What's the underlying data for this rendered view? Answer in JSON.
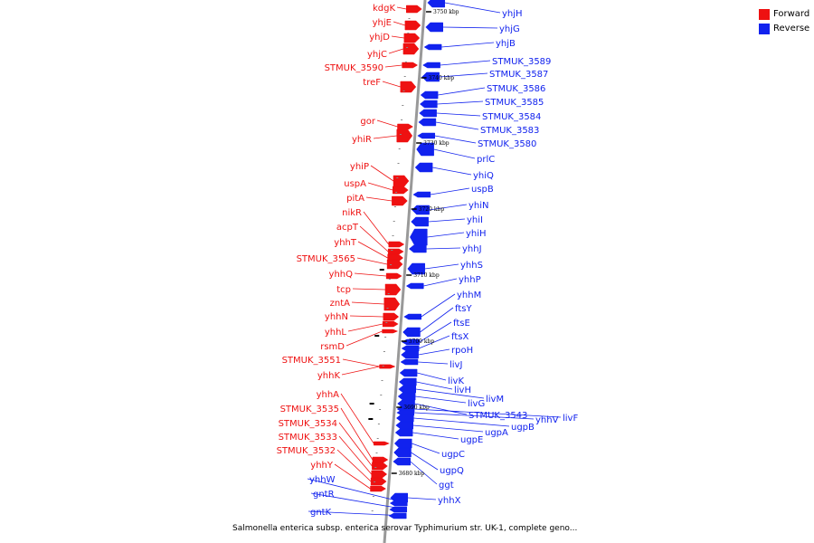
{
  "legend": {
    "forward": {
      "label": "Forward",
      "color": "#ee1111"
    },
    "reverse": {
      "label": "Reverse",
      "color": "#1122ee"
    }
  },
  "caption": "Salmonella enterica subsp. enterica serovar Typhimurium str. UK-1, complete geno...",
  "colors": {
    "forward": "#ee1111",
    "reverse": "#1122ee",
    "axis": "#999999"
  },
  "forward_genes": [
    "kdgK",
    "yhjE",
    "yhjD",
    "yhjC",
    "STMUK_3590",
    "treF",
    "gor",
    "yhiR",
    "yhiP",
    "uspA",
    "pitA",
    "nikR",
    "acpT",
    "yhhT",
    "STMUK_3565",
    "yhhQ",
    "tcp",
    "zntA",
    "yhhN",
    "yhhL",
    "rsmD",
    "STMUK_3551",
    "yhhK",
    "yhhA",
    "STMUK_3535",
    "STMUK_3534",
    "STMUK_3533",
    "STMUK_3532",
    "yhhY"
  ],
  "reverse_genes": [
    "yhjH",
    "yhjG",
    "yhjB",
    "STMUK_3589",
    "STMUK_3587",
    "STMUK_3586",
    "STMUK_3585",
    "STMUK_3584",
    "STMUK_3583",
    "STMUK_3580",
    "prlC",
    "yhiQ",
    "uspB",
    "yhiN",
    "yhiI",
    "yhiH",
    "yhhJ",
    "yhhS",
    "yhhP",
    "yhhM",
    "ftsY",
    "ftsE",
    "ftsX",
    "rpoH",
    "livJ",
    "livK",
    "livH",
    "livM",
    "livG",
    "STMUK_3543",
    "livF",
    "yhhV",
    "ugpB",
    "ugpA",
    "ugpE",
    "ugpC",
    "ugpQ",
    "ggt",
    "yhhX",
    "yhhW",
    "gntR",
    "gntK"
  ],
  "scale_ticks": [
    "3750 kbp",
    "3740 kbp",
    "3730 kbp",
    "3720 kbp",
    "3710 kbp",
    "3700 kbp",
    "3690 kbp",
    "3680 kbp"
  ]
}
